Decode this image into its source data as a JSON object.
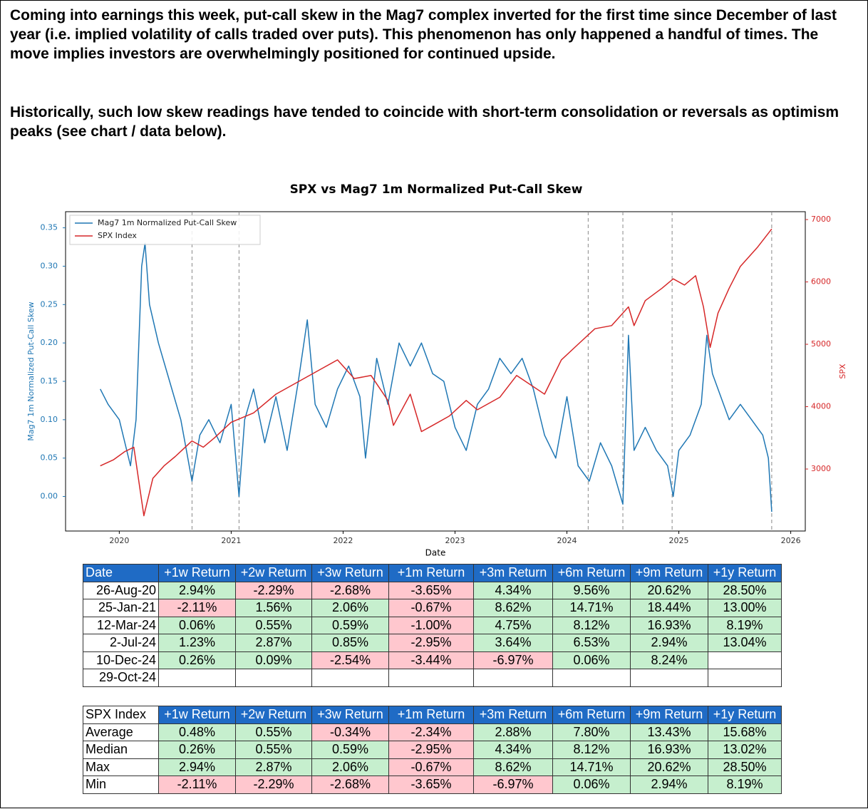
{
  "text": {
    "paragraphs": [
      "Coming into earnings this week, put-call skew in the Mag7 complex inverted for the first time since December of last year (i.e. implied volatility of calls traded over puts). This phenomenon has only happened a handful of times. The move implies investors are overwhelmingly positioned for continued upside.",
      "Historically, such low skew readings have tended to coincide with short-term consolidation or reversals as optimism peaks (see chart / data below)."
    ]
  },
  "chart_data": {
    "type": "line",
    "title": "SPX vs Mag7 1m Normalized Put-Call Skew",
    "x_label": "Date",
    "y_label": "Mag7 1m Normalized Put-Call Skew",
    "y2_label": "SPX",
    "xlim": [
      2019.52,
      2026.13
    ],
    "xticks": [
      2020,
      2021,
      2022,
      2023,
      2024,
      2025,
      2026
    ],
    "ylim": [
      -0.045,
      0.371
    ],
    "yticks": [
      {
        "value": 0,
        "label": "0.00"
      },
      0.05,
      {
        "value": 0.1,
        "label": "0.10"
      },
      0.15,
      {
        "value": 0.2,
        "label": "0.20"
      },
      0.25,
      {
        "value": 0.3,
        "label": "0.30"
      },
      0.35
    ],
    "y2lim": [
      2006,
      7126
    ],
    "y2ticks": [
      3000,
      4000,
      5000,
      6000,
      7000
    ],
    "legend": "upper left",
    "event_lines": [
      2020.65,
      2021.07,
      2024.19,
      2024.5,
      2024.94,
      2025.83
    ],
    "series": [
      {
        "name": "Mag7 1m Normalized Put-Call Skew",
        "color": "#1f77b4",
        "x": [
          2019.83,
          2019.9,
          2020.0,
          2020.1,
          2020.15,
          2020.2,
          2020.23,
          2020.27,
          2020.35,
          2020.45,
          2020.55,
          2020.6,
          2020.65,
          2020.72,
          2020.8,
          2020.9,
          2021.0,
          2021.07,
          2021.12,
          2021.2,
          2021.3,
          2021.4,
          2021.5,
          2021.6,
          2021.68,
          2021.75,
          2021.85,
          2021.95,
          2022.05,
          2022.15,
          2022.2,
          2022.3,
          2022.4,
          2022.5,
          2022.6,
          2022.7,
          2022.8,
          2022.9,
          2023.0,
          2023.1,
          2023.2,
          2023.3,
          2023.4,
          2023.5,
          2023.6,
          2023.7,
          2023.8,
          2023.9,
          2024.0,
          2024.1,
          2024.2,
          2024.3,
          2024.4,
          2024.5,
          2024.55,
          2024.6,
          2024.7,
          2024.8,
          2024.9,
          2024.95,
          2025.0,
          2025.1,
          2025.2,
          2025.25,
          2025.3,
          2025.35,
          2025.45,
          2025.55,
          2025.65,
          2025.75,
          2025.8,
          2025.83
        ],
        "values": [
          0.14,
          0.12,
          0.1,
          0.04,
          0.1,
          0.3,
          0.33,
          0.25,
          0.2,
          0.15,
          0.1,
          0.06,
          0.02,
          0.08,
          0.1,
          0.07,
          0.12,
          0.0,
          0.1,
          0.14,
          0.07,
          0.13,
          0.06,
          0.15,
          0.23,
          0.12,
          0.09,
          0.14,
          0.17,
          0.13,
          0.05,
          0.18,
          0.12,
          0.2,
          0.17,
          0.2,
          0.16,
          0.15,
          0.09,
          0.06,
          0.12,
          0.14,
          0.18,
          0.16,
          0.18,
          0.14,
          0.08,
          0.05,
          0.13,
          0.04,
          0.02,
          0.07,
          0.04,
          -0.01,
          0.21,
          0.06,
          0.09,
          0.06,
          0.04,
          0.0,
          0.06,
          0.08,
          0.12,
          0.21,
          0.16,
          0.14,
          0.1,
          0.12,
          0.1,
          0.08,
          0.05,
          -0.02
        ]
      },
      {
        "name": "SPX Index",
        "color": "#d62728",
        "axis": "y2",
        "x": [
          2019.83,
          2019.95,
          2020.05,
          2020.13,
          2020.22,
          2020.3,
          2020.4,
          2020.5,
          2020.65,
          2020.75,
          2020.85,
          2021.0,
          2021.2,
          2021.4,
          2021.6,
          2021.8,
          2021.95,
          2022.1,
          2022.25,
          2022.4,
          2022.45,
          2022.6,
          2022.7,
          2022.8,
          2022.95,
          2023.1,
          2023.2,
          2023.4,
          2023.55,
          2023.8,
          2023.95,
          2024.1,
          2024.25,
          2024.4,
          2024.55,
          2024.6,
          2024.7,
          2024.85,
          2024.95,
          2025.05,
          2025.15,
          2025.22,
          2025.28,
          2025.35,
          2025.45,
          2025.55,
          2025.7,
          2025.83
        ],
        "values": [
          3050,
          3150,
          3280,
          3350,
          2250,
          2850,
          3050,
          3200,
          3450,
          3350,
          3500,
          3750,
          3900,
          4200,
          4400,
          4600,
          4750,
          4450,
          4500,
          4100,
          3700,
          4200,
          3600,
          3700,
          3850,
          4100,
          3950,
          4150,
          4500,
          4200,
          4750,
          5000,
          5250,
          5300,
          5600,
          5300,
          5700,
          5900,
          6050,
          5950,
          6100,
          5600,
          4950,
          5500,
          5900,
          6250,
          6550,
          6850
        ]
      }
    ]
  },
  "tables": [
    {
      "header": [
        "Date",
        "+1w Return",
        "+2w Return",
        "+3w Return",
        "+1m Return",
        "+3m Return",
        "+6m Return",
        "+9m Return",
        "+1y Return"
      ],
      "rows": [
        [
          "26-Aug-20",
          "2.94%",
          "-2.29%",
          "-2.68%",
          "-3.65%",
          "4.34%",
          "9.56%",
          "20.62%",
          "28.50%"
        ],
        [
          "25-Jan-21",
          "-2.11%",
          "1.56%",
          "2.06%",
          "-0.67%",
          "8.62%",
          "14.71%",
          "18.44%",
          "13.00%"
        ],
        [
          "12-Mar-24",
          "0.06%",
          "0.55%",
          "0.59%",
          "-1.00%",
          "4.75%",
          "8.12%",
          "16.93%",
          "8.19%"
        ],
        [
          "2-Jul-24",
          "1.23%",
          "2.87%",
          "0.85%",
          "-2.95%",
          "3.64%",
          "6.53%",
          "2.94%",
          "13.04%"
        ],
        [
          "10-Dec-24",
          "0.26%",
          "0.09%",
          "-2.54%",
          "-3.44%",
          "-6.97%",
          "0.06%",
          "8.24%"
        ],
        [
          "29-Oct-24"
        ]
      ]
    },
    {
      "header": [
        "SPX Index",
        "+1w Return",
        "+2w Return",
        "+3w Return",
        "+1m Return",
        "+3m Return",
        "+6m Return",
        "+9m Return",
        "+1y Return"
      ],
      "rows": [
        [
          "Average",
          "0.48%",
          "0.55%",
          "-0.34%",
          "-2.34%",
          "2.88%",
          "7.80%",
          "13.43%",
          "15.68%"
        ],
        [
          "Median",
          "0.26%",
          "0.55%",
          "0.59%",
          "-2.95%",
          "4.34%",
          "8.12%",
          "16.93%",
          "13.02%"
        ],
        [
          "Max",
          "2.94%",
          "2.87%",
          "2.06%",
          "-0.67%",
          "8.62%",
          "14.71%",
          "20.62%",
          "28.50%"
        ],
        [
          "Min",
          "-2.11%",
          "-2.29%",
          "-2.68%",
          "-3.65%",
          "-6.97%",
          "0.06%",
          "2.94%",
          "8.19%"
        ]
      ]
    }
  ]
}
